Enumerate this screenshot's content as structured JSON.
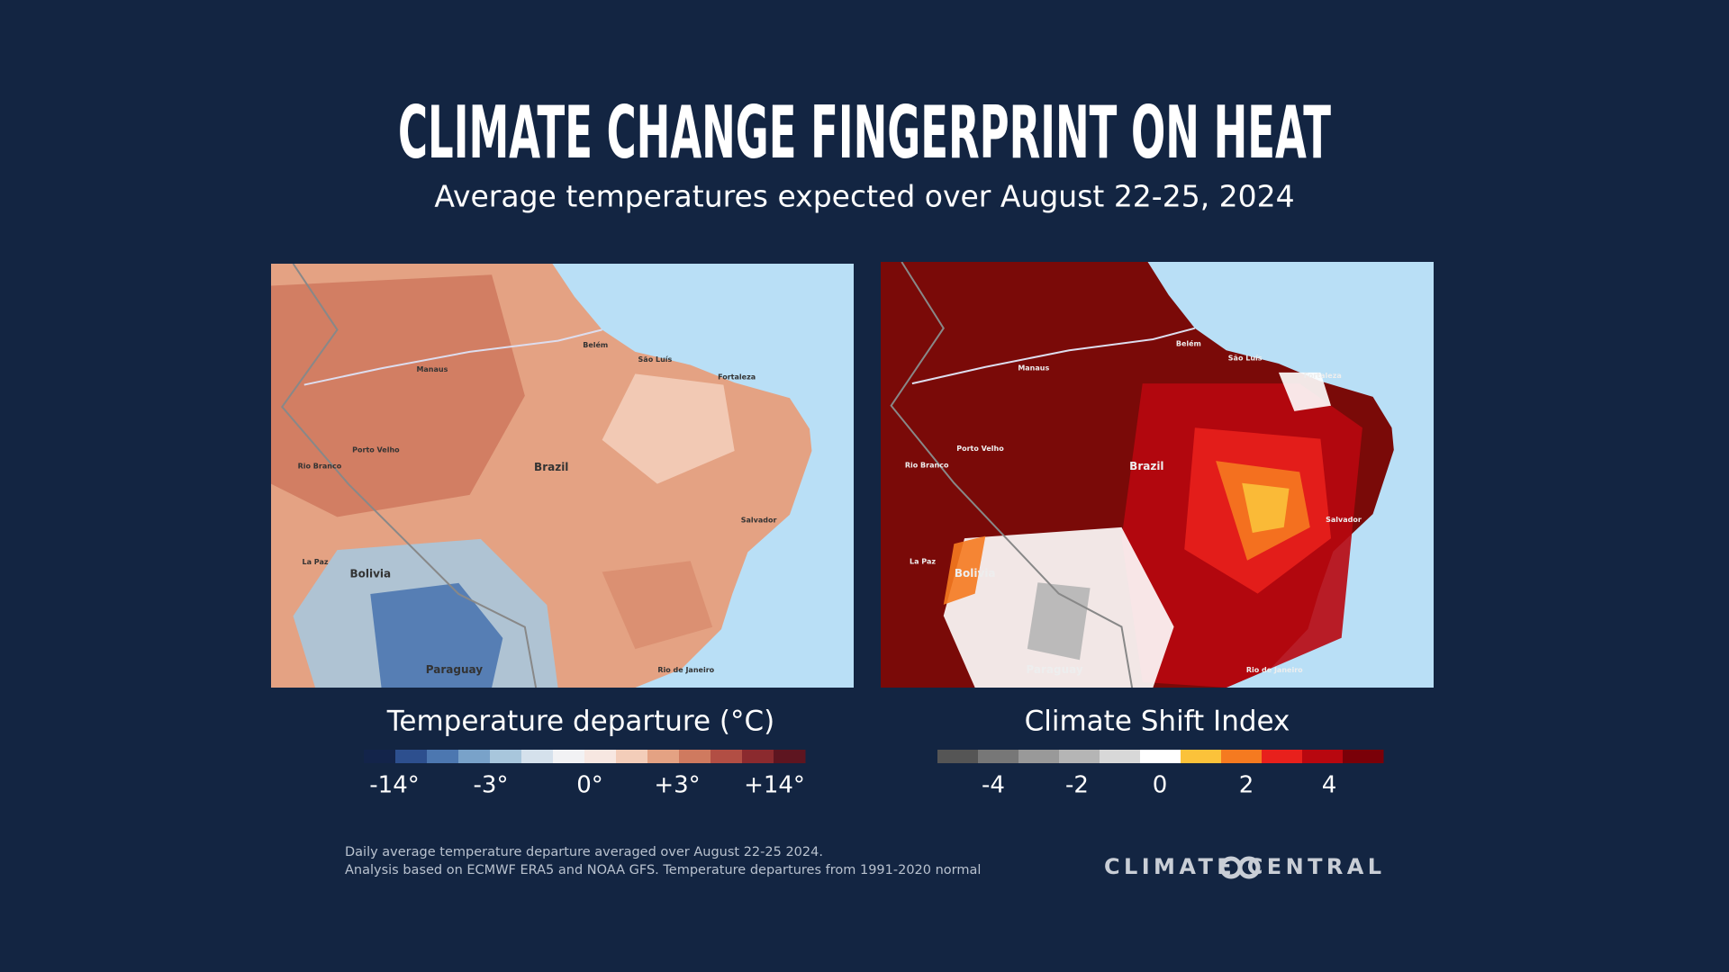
{
  "header": {
    "title": "CLIMATE CHANGE FINGERPRINT ON HEAT",
    "subtitle": "Average temperatures expected over August 22-25, 2024"
  },
  "maps": [
    {
      "places": [
        "Manaus",
        "Brazil",
        "Bolivia",
        "Paraguay",
        "Salvador",
        "Fortaleza",
        "Porto Velho",
        "Rio Branco",
        "La Paz",
        "Belém",
        "São Luís",
        "Rio de Janeiro"
      ],
      "legend": {
        "title": "Temperature departure (°C)",
        "colors": [
          "#13244a",
          "#2d4f8e",
          "#4c77b0",
          "#79a2c9",
          "#a8c6dc",
          "#d5e1ec",
          "#f2f2f4",
          "#f7e7e1",
          "#f3cdb9",
          "#e4a283",
          "#cf7a5f",
          "#b24e44",
          "#8b2a2e",
          "#5e1520"
        ],
        "ticks": [
          "-14°",
          "-3°",
          "0°",
          "+3°",
          "+14°"
        ]
      }
    },
    {
      "places": [
        "Manaus",
        "Brazil",
        "Bolivia",
        "Paraguay",
        "Salvador",
        "Fortaleza",
        "Porto Velho",
        "Rio Branco",
        "La Paz",
        "Belém",
        "São Luís",
        "Rio de Janeiro"
      ],
      "legend": {
        "title": "Climate Shift Index",
        "colors": [
          "#555555",
          "#777777",
          "#999999",
          "#b5b5b5",
          "#d8d8d8",
          "#ffffff",
          "#fbc23a",
          "#f57a20",
          "#e8201c",
          "#b8070f",
          "#7a0008"
        ],
        "ticks": [
          -4,
          -2,
          0,
          2,
          4
        ]
      }
    }
  ],
  "footer": {
    "note_line1": "Daily average temperature departure averaged over August 22-25 2024.",
    "note_line2": "Analysis based on ECMWF ERA5 and NOAA GFS. Temperature departures from 1991-2020 normal",
    "logo": "CLIMATE CENTRAL"
  }
}
